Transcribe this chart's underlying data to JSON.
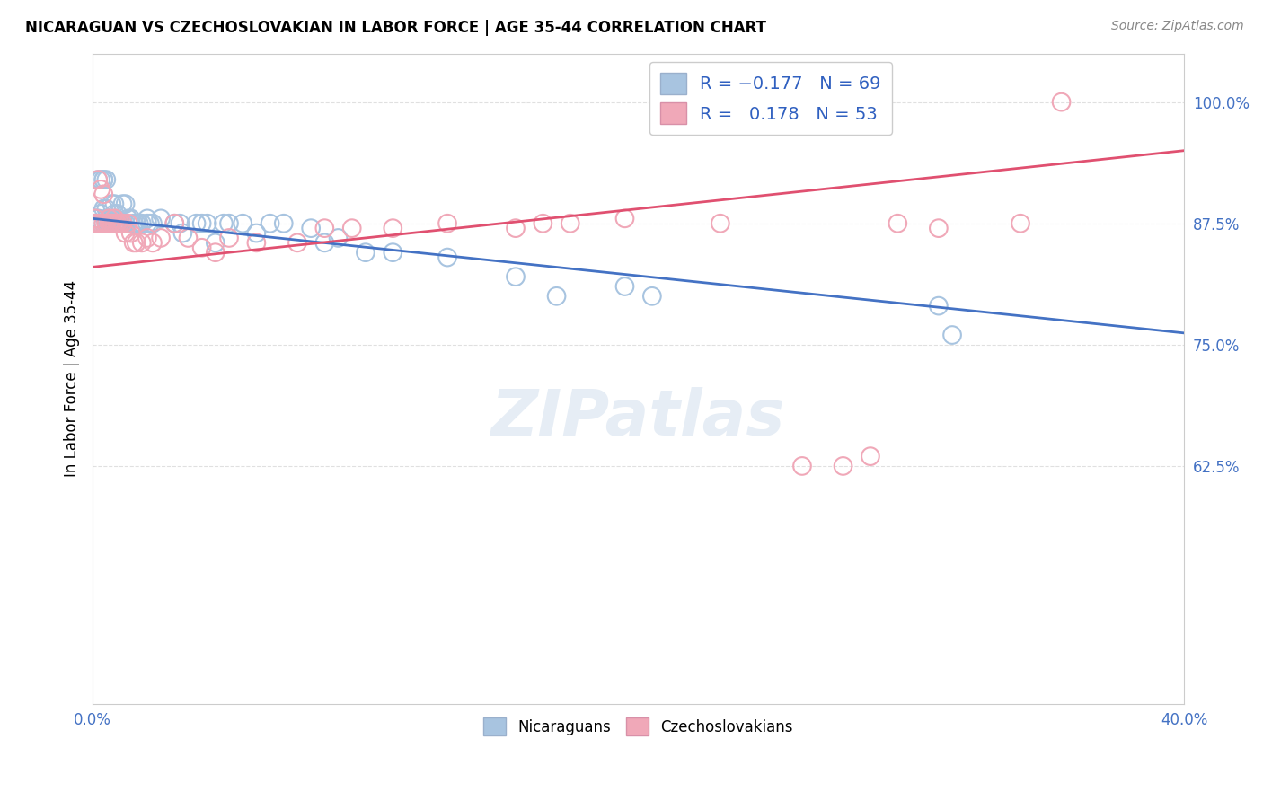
{
  "title": "NICARAGUAN VS CZECHOSLOVAKIAN IN LABOR FORCE | AGE 35-44 CORRELATION CHART",
  "source": "Source: ZipAtlas.com",
  "ylabel": "In Labor Force | Age 35-44",
  "xlim": [
    0.0,
    0.4
  ],
  "ylim": [
    0.38,
    1.05
  ],
  "xticks": [
    0.0,
    0.05,
    0.1,
    0.15,
    0.2,
    0.25,
    0.3,
    0.35,
    0.4
  ],
  "xticklabels_show": [
    "0.0%",
    "40.0%"
  ],
  "yticks": [
    0.625,
    0.75,
    0.875,
    1.0
  ],
  "yticklabels": [
    "62.5%",
    "75.0%",
    "87.5%",
    "100.0%"
  ],
  "blue_color": "#a8c4e0",
  "pink_color": "#f0a8b8",
  "blue_line_color": "#4472c4",
  "pink_line_color": "#e05070",
  "blue_line_x0": 0.0,
  "blue_line_y0": 0.88,
  "blue_line_x1": 0.4,
  "blue_line_y1": 0.762,
  "pink_line_x0": 0.0,
  "pink_line_y0": 0.83,
  "pink_line_x1": 0.4,
  "pink_line_y1": 0.95,
  "watermark": "ZIPatlas",
  "blue_scatter_x": [
    0.001,
    0.001,
    0.002,
    0.002,
    0.002,
    0.003,
    0.003,
    0.003,
    0.004,
    0.004,
    0.004,
    0.004,
    0.005,
    0.005,
    0.005,
    0.005,
    0.006,
    0.006,
    0.006,
    0.007,
    0.007,
    0.007,
    0.008,
    0.008,
    0.008,
    0.009,
    0.009,
    0.01,
    0.01,
    0.011,
    0.011,
    0.012,
    0.012,
    0.013,
    0.014,
    0.015,
    0.016,
    0.017,
    0.018,
    0.02,
    0.02,
    0.021,
    0.022,
    0.025,
    0.03,
    0.032,
    0.033,
    0.038,
    0.04,
    0.042,
    0.045,
    0.048,
    0.05,
    0.055,
    0.06,
    0.065,
    0.07,
    0.08,
    0.085,
    0.09,
    0.1,
    0.11,
    0.13,
    0.155,
    0.17,
    0.195,
    0.205,
    0.31,
    0.315
  ],
  "blue_scatter_y": [
    0.88,
    0.875,
    0.92,
    0.88,
    0.875,
    0.92,
    0.885,
    0.875,
    0.92,
    0.92,
    0.89,
    0.875,
    0.92,
    0.89,
    0.88,
    0.875,
    0.88,
    0.875,
    0.875,
    0.895,
    0.88,
    0.875,
    0.895,
    0.885,
    0.875,
    0.885,
    0.875,
    0.875,
    0.875,
    0.895,
    0.875,
    0.895,
    0.875,
    0.88,
    0.88,
    0.875,
    0.875,
    0.875,
    0.875,
    0.875,
    0.88,
    0.875,
    0.875,
    0.88,
    0.875,
    0.875,
    0.865,
    0.875,
    0.875,
    0.875,
    0.855,
    0.875,
    0.875,
    0.875,
    0.865,
    0.875,
    0.875,
    0.87,
    0.855,
    0.86,
    0.845,
    0.845,
    0.84,
    0.82,
    0.8,
    0.81,
    0.8,
    0.79,
    0.76
  ],
  "pink_scatter_x": [
    0.001,
    0.001,
    0.002,
    0.002,
    0.003,
    0.003,
    0.004,
    0.004,
    0.005,
    0.005,
    0.006,
    0.006,
    0.007,
    0.007,
    0.008,
    0.008,
    0.009,
    0.009,
    0.01,
    0.01,
    0.011,
    0.012,
    0.013,
    0.014,
    0.015,
    0.016,
    0.018,
    0.02,
    0.022,
    0.025,
    0.03,
    0.035,
    0.04,
    0.045,
    0.05,
    0.06,
    0.075,
    0.085,
    0.095,
    0.11,
    0.13,
    0.155,
    0.165,
    0.175,
    0.195,
    0.23,
    0.26,
    0.275,
    0.285,
    0.295,
    0.31,
    0.34,
    0.355
  ],
  "pink_scatter_y": [
    0.88,
    0.875,
    0.92,
    0.875,
    0.91,
    0.875,
    0.905,
    0.875,
    0.875,
    0.875,
    0.88,
    0.875,
    0.875,
    0.875,
    0.88,
    0.875,
    0.875,
    0.875,
    0.875,
    0.875,
    0.875,
    0.865,
    0.875,
    0.865,
    0.855,
    0.855,
    0.855,
    0.86,
    0.855,
    0.86,
    0.875,
    0.86,
    0.85,
    0.845,
    0.86,
    0.855,
    0.855,
    0.87,
    0.87,
    0.87,
    0.875,
    0.87,
    0.875,
    0.875,
    0.88,
    0.875,
    0.625,
    0.625,
    0.635,
    0.875,
    0.87,
    0.875,
    1.0
  ],
  "background_color": "#ffffff",
  "grid_color": "#e0e0e0"
}
